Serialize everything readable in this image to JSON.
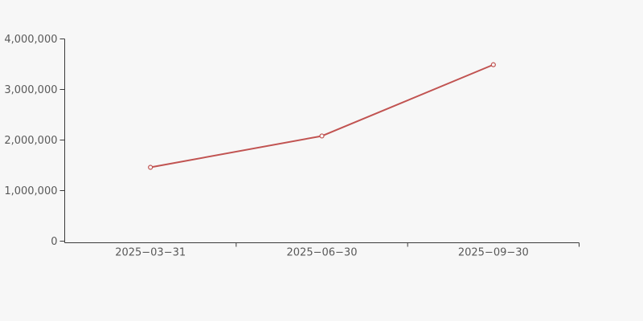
{
  "chart_data": {
    "type": "line",
    "title": "",
    "xlabel": "",
    "ylabel": "",
    "categories": [
      "2025−03−31",
      "2025−06−30",
      "2025−09−30"
    ],
    "values": [
      1460000,
      2080000,
      3490000
    ],
    "ylim": [
      0,
      4000000
    ],
    "y_ticks": [
      {
        "value": 0,
        "label": "0"
      },
      {
        "value": 1000000,
        "label": "1,000,000"
      },
      {
        "value": 2000000,
        "label": "2,000,000"
      },
      {
        "value": 3000000,
        "label": "3,000,000"
      },
      {
        "value": 4000000,
        "label": "4,000,000"
      }
    ],
    "grid": false,
    "legend": "none",
    "marker": "open-circle",
    "colors": {
      "background": "#f7f7f7",
      "axis": "#3a3a3a",
      "text": "#595959",
      "line": "#c15351",
      "marker_fill": "#f7f7f7"
    }
  }
}
